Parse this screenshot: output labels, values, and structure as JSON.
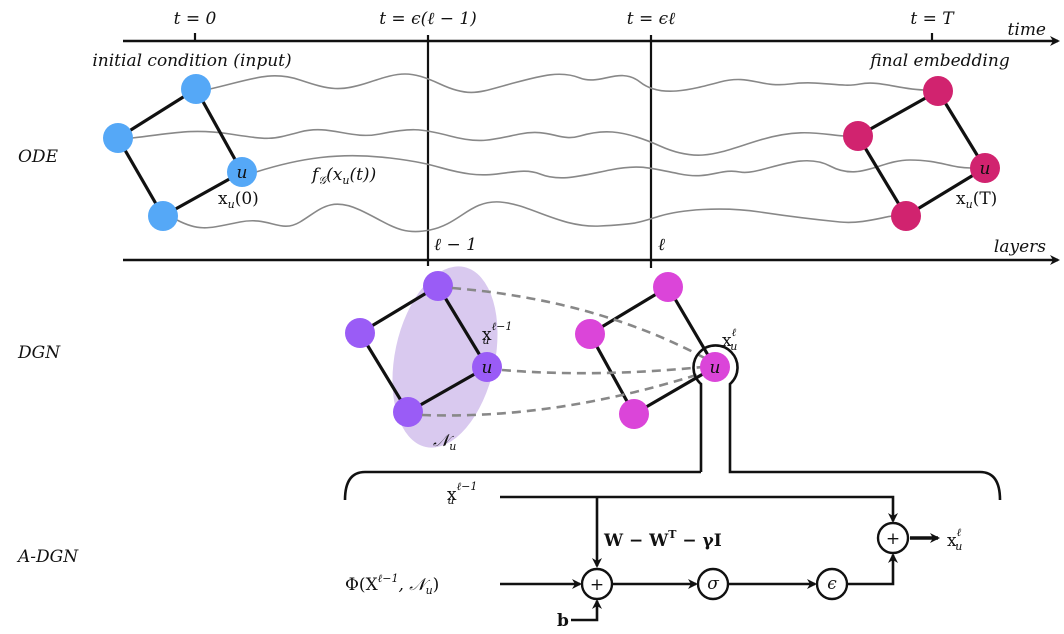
{
  "time_axis": {
    "label": "time",
    "ticks": [
      "t = 0",
      "t = ϵ(ℓ − 1)",
      "t = ϵℓ",
      "t = T"
    ]
  },
  "layers_axis": {
    "label": "layers",
    "ticks": [
      "ℓ − 1",
      "ℓ"
    ]
  },
  "rows": {
    "ode": "ODE",
    "dgn": "DGN",
    "adgn": "A-DGN"
  },
  "ode": {
    "input_caption": "initial condition (input)",
    "output_caption": "final embedding",
    "node_label": "u",
    "x0_label": "x",
    "x0_sub": "u",
    "x0_arg": "(0)",
    "xT_arg": "(T)",
    "flow_f": "f",
    "flow_f_sub": "𝒢",
    "flow_arg_open": "(x",
    "flow_arg_close": "(t))",
    "colors": {
      "input_nodes": "#55a8f7",
      "output_nodes": "#d1236f"
    }
  },
  "dgn": {
    "prev_label": "x",
    "sub": "u",
    "prev_sup": "ℓ−1",
    "cur_sup": "ℓ",
    "neighborhood": "𝒩",
    "node_label": "u",
    "colors": {
      "prev_nodes": "#9a5cf6",
      "cur_nodes": "#db45d9",
      "neighborhood": "#d9c9ef"
    }
  },
  "adgn": {
    "input_state": "x",
    "input_sub": "u",
    "input_sup": "ℓ−1",
    "weight": "W − W",
    "weight_sup": "T",
    "weight_tail": " − γI",
    "aggregate": "Φ(X",
    "aggregate_sup": "ℓ−1",
    "aggregate_tail": ", 𝒩",
    "aggregate_sub": "u",
    "aggregate_close": ")",
    "bias": "b",
    "plus": "+",
    "sigma": "σ",
    "epsilon": "ϵ",
    "output": "x",
    "output_sub": "u",
    "output_sup": "ℓ"
  }
}
